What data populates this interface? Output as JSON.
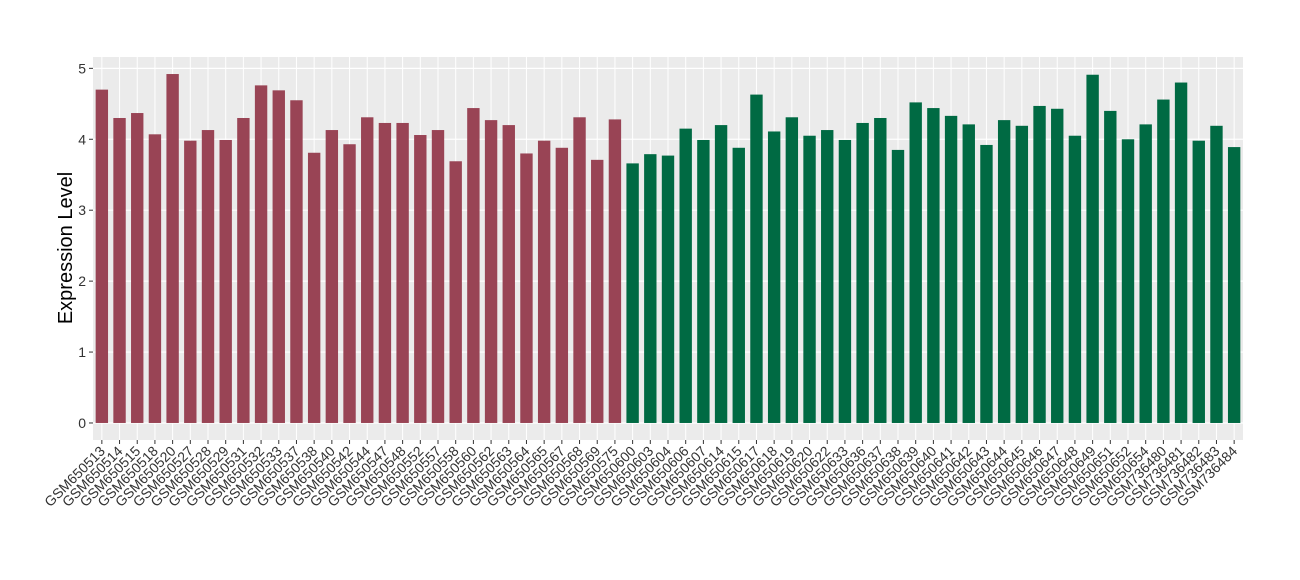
{
  "chart_data": {
    "type": "bar",
    "y_label": "Expression Level",
    "categories": [
      "GSM650513",
      "GSM650514",
      "GSM650515",
      "GSM650518",
      "GSM650520",
      "GSM650527",
      "GSM650528",
      "GSM650529",
      "GSM650531",
      "GSM650532",
      "GSM650533",
      "GSM650537",
      "GSM650538",
      "GSM650540",
      "GSM650542",
      "GSM650544",
      "GSM650547",
      "GSM650548",
      "GSM650552",
      "GSM650557",
      "GSM650558",
      "GSM650560",
      "GSM650562",
      "GSM650563",
      "GSM650564",
      "GSM650565",
      "GSM650567",
      "GSM650568",
      "GSM650569",
      "GSM650575",
      "GSM650600",
      "GSM650603",
      "GSM650604",
      "GSM650606",
      "GSM650607",
      "GSM650614",
      "GSM650615",
      "GSM650617",
      "GSM650618",
      "GSM650619",
      "GSM650620",
      "GSM650622",
      "GSM650633",
      "GSM650636",
      "GSM650637",
      "GSM650638",
      "GSM650639",
      "GSM650640",
      "GSM650641",
      "GSM650642",
      "GSM650643",
      "GSM650644",
      "GSM650645",
      "GSM650646",
      "GSM650647",
      "GSM650648",
      "GSM650649",
      "GSM650651",
      "GSM650652",
      "GSM650654",
      "GSM736480",
      "GSM736481",
      "GSM736482",
      "GSM736483",
      "GSM736484"
    ],
    "values": [
      4.7,
      4.3,
      4.37,
      4.07,
      4.92,
      3.98,
      4.13,
      3.99,
      4.3,
      4.76,
      4.69,
      4.55,
      3.81,
      4.13,
      3.93,
      4.31,
      4.23,
      4.23,
      4.06,
      4.13,
      3.69,
      4.44,
      4.27,
      4.2,
      3.8,
      3.98,
      3.88,
      4.31,
      3.71,
      4.28,
      3.66,
      3.79,
      3.77,
      4.15,
      3.99,
      4.2,
      3.88,
      4.63,
      4.11,
      4.31,
      4.05,
      4.13,
      3.99,
      4.23,
      4.3,
      3.85,
      4.52,
      4.44,
      4.33,
      4.21,
      3.92,
      4.27,
      4.19,
      4.47,
      4.43,
      4.05,
      4.91,
      4.4,
      4.0,
      4.21,
      4.56,
      4.8,
      3.98,
      4.19,
      3.89
    ],
    "colors": [
      "#994455",
      "#994455",
      "#994455",
      "#994455",
      "#994455",
      "#994455",
      "#994455",
      "#994455",
      "#994455",
      "#994455",
      "#994455",
      "#994455",
      "#994455",
      "#994455",
      "#994455",
      "#994455",
      "#994455",
      "#994455",
      "#994455",
      "#994455",
      "#994455",
      "#994455",
      "#994455",
      "#994455",
      "#994455",
      "#994455",
      "#994455",
      "#994455",
      "#994455",
      "#994455",
      "#006a43",
      "#006a43",
      "#006a43",
      "#006a43",
      "#006a43",
      "#006a43",
      "#006a43",
      "#006a43",
      "#006a43",
      "#006a43",
      "#006a43",
      "#006a43",
      "#006a43",
      "#006a43",
      "#006a43",
      "#006a43",
      "#006a43",
      "#006a43",
      "#006a43",
      "#006a43",
      "#006a43",
      "#006a43",
      "#006a43",
      "#006a43",
      "#006a43",
      "#006a43",
      "#006a43",
      "#006a43",
      "#006a43",
      "#006a43",
      "#006a43",
      "#006a43",
      "#006a43",
      "#006a43",
      "#006a43"
    ],
    "ylim": [
      -0.24,
      5.16
    ],
    "yticks": [
      0,
      1,
      2,
      3,
      4,
      5
    ],
    "grid": true
  }
}
